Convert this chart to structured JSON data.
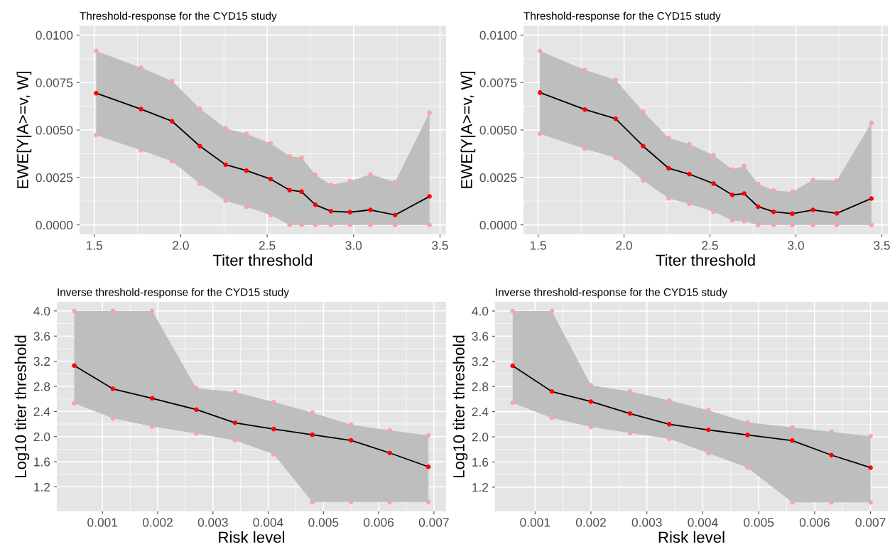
{
  "chart_data": [
    {
      "type": "line",
      "title": "Threshold-response for the CYD15 study",
      "xlabel": "Titer threshold",
      "ylabel": "EWE[Y|A>=v, W]",
      "x": [
        1.511,
        1.77,
        1.95,
        2.111,
        2.26,
        2.38,
        2.52,
        2.63,
        2.699,
        2.779,
        2.869,
        2.979,
        3.098,
        3.24,
        3.439
      ],
      "series": [
        {
          "color": "#000000",
          "marker": "none",
          "values": [
            0.00694,
            0.0061,
            0.00546,
            0.00415,
            0.00317,
            0.00286,
            0.00241,
            0.00183,
            0.00175,
            0.00106,
            0.00072,
            0.00067,
            0.00079,
            0.00052,
            0.0015
          ],
          "upper": [
            0.00916,
            0.00828,
            0.00758,
            0.00612,
            0.00508,
            0.00479,
            0.00429,
            0.00362,
            0.00354,
            0.00264,
            0.00211,
            0.0023,
            0.00266,
            0.00226,
            0.00591
          ],
          "lower": [
            0.00473,
            0.00393,
            0.00335,
            0.00217,
            0.00127,
            0.00095,
            0.00052,
            0,
            0,
            0,
            0,
            0,
            0,
            0,
            0
          ]
        },
        {
          "type": "scatter",
          "color": "#ff0000",
          "marker": "circle",
          "values": [
            0.00694,
            0.0061,
            0.00546,
            0.00415,
            0.00317,
            0.00286,
            0.00241,
            0.00183,
            0.00175,
            0.00106,
            0.00072,
            0.00067,
            0.00079,
            0.00052,
            0.0015
          ]
        },
        {
          "type": "scatter",
          "color": "#f2a7a7",
          "marker": "circle",
          "values": [
            0.00916,
            0.00828,
            0.00758,
            0.00612,
            0.00508,
            0.00479,
            0.00429,
            0.00362,
            0.00354,
            0.00264,
            0.00211,
            0.0023,
            0.00266,
            0.00226,
            0.00591
          ]
        },
        {
          "type": "scatter",
          "color": "#f2a7a7",
          "marker": "circle",
          "values": [
            0.00473,
            0.00393,
            0.00335,
            0.00217,
            0.00127,
            0.00095,
            0.00052,
            0,
            0,
            0,
            0,
            0,
            0,
            0,
            0
          ]
        }
      ],
      "xlim": [
        1.415,
        3.535
      ],
      "ylim": [
        -0.0005,
        0.0105
      ],
      "xticks": [
        {
          "value": 1.5,
          "label": "1.5"
        },
        {
          "value": 2.0,
          "label": "2.0"
        },
        {
          "value": 2.5,
          "label": "2.5"
        },
        {
          "value": 3.0,
          "label": "3.0"
        },
        {
          "value": 3.5,
          "label": "3.5"
        }
      ],
      "yticks": [
        {
          "value": 0,
          "label": "0.0000"
        },
        {
          "value": 0.0025,
          "label": "0.0025"
        },
        {
          "value": 0.005,
          "label": "0.0050"
        },
        {
          "value": 0.0075,
          "label": "0.0075"
        },
        {
          "value": 0.01,
          "label": "0.0100"
        }
      ],
      "grid": true
    },
    {
      "type": "line",
      "title": "Threshold-response for the CYD15 study",
      "xlabel": "Titer threshold",
      "ylabel": "EWE[Y|A>=v, W]",
      "x": [
        1.511,
        1.772,
        1.951,
        2.111,
        2.26,
        2.38,
        2.521,
        2.63,
        2.699,
        2.78,
        2.87,
        2.979,
        3.099,
        3.238,
        3.439
      ],
      "series": [
        {
          "color": "#000000",
          "marker": "none",
          "values": [
            0.00697,
            0.00608,
            0.00559,
            0.00415,
            0.00298,
            0.00267,
            0.00218,
            0.00158,
            0.00165,
            0.00096,
            0.00069,
            0.00059,
            0.00079,
            0.00061,
            0.00139
          ],
          "upper": [
            0.00916,
            0.00816,
            0.00764,
            0.00596,
            0.00458,
            0.00425,
            0.00367,
            0.00291,
            0.00311,
            0.00216,
            0.00182,
            0.00174,
            0.00237,
            0.00233,
            0.00537
          ],
          "lower": [
            0.0048,
            0.00401,
            0.00353,
            0.00235,
            0.0014,
            0.00111,
            0.00069,
            0.00024,
            0.00019,
            0,
            0,
            0,
            0,
            0,
            0
          ]
        },
        {
          "type": "scatter",
          "color": "#ff0000",
          "marker": "circle",
          "values": [
            0.00697,
            0.00608,
            0.00559,
            0.00415,
            0.00298,
            0.00267,
            0.00218,
            0.00158,
            0.00165,
            0.00096,
            0.00069,
            0.00059,
            0.00079,
            0.00061,
            0.00139
          ]
        },
        {
          "type": "scatter",
          "color": "#f2a7a7",
          "marker": "circle",
          "values": [
            0.00916,
            0.00816,
            0.00764,
            0.00596,
            0.00458,
            0.00425,
            0.00367,
            0.00291,
            0.00311,
            0.00216,
            0.00182,
            0.00174,
            0.00237,
            0.00233,
            0.00537
          ]
        },
        {
          "type": "scatter",
          "color": "#f2a7a7",
          "marker": "circle",
          "values": [
            0.0048,
            0.00401,
            0.00353,
            0.00235,
            0.0014,
            0.00111,
            0.00069,
            0.00024,
            0.00019,
            0,
            0,
            0,
            0,
            0,
            0
          ]
        }
      ],
      "xlim": [
        1.415,
        3.535
      ],
      "ylim": [
        -0.0005,
        0.0105
      ],
      "xticks": [
        {
          "value": 1.5,
          "label": "1.5"
        },
        {
          "value": 2.0,
          "label": "2.0"
        },
        {
          "value": 2.5,
          "label": "2.5"
        },
        {
          "value": 3.0,
          "label": "3.0"
        },
        {
          "value": 3.5,
          "label": "3.5"
        }
      ],
      "yticks": [
        {
          "value": 0,
          "label": "0.0000"
        },
        {
          "value": 0.0025,
          "label": "0.0025"
        },
        {
          "value": 0.005,
          "label": "0.0050"
        },
        {
          "value": 0.0075,
          "label": "0.0075"
        },
        {
          "value": 0.01,
          "label": "0.0100"
        }
      ],
      "grid": true
    },
    {
      "type": "line",
      "title": "Inverse threshold-response for the CYD15 study",
      "xlabel": "Risk level",
      "ylabel": "Log10 titer threshold",
      "x": [
        0.00049,
        0.00119,
        0.0019,
        0.0027,
        0.0034,
        0.0041,
        0.0048,
        0.0055,
        0.0062,
        0.0069
      ],
      "series": [
        {
          "color": "#000000",
          "marker": "none",
          "values": [
            3.13,
            2.76,
            2.61,
            2.43,
            2.22,
            2.12,
            2.03,
            1.94,
            1.74,
            1.52
          ],
          "upper": [
            4.0,
            4.0,
            4.0,
            2.77,
            2.71,
            2.55,
            2.38,
            2.19,
            2.1,
            2.02
          ],
          "lower": [
            2.53,
            2.29,
            2.16,
            2.05,
            1.94,
            1.72,
            0.96,
            0.96,
            0.96,
            0.96
          ]
        },
        {
          "type": "scatter",
          "color": "#ff0000",
          "marker": "circle",
          "values": [
            3.13,
            2.76,
            2.61,
            2.43,
            2.22,
            2.12,
            2.03,
            1.94,
            1.74,
            1.52
          ]
        },
        {
          "type": "scatter",
          "color": "#f2a7a7",
          "marker": "circle",
          "values": [
            4.0,
            4.0,
            4.0,
            2.77,
            2.71,
            2.55,
            2.38,
            2.19,
            2.1,
            2.02
          ]
        },
        {
          "type": "scatter",
          "color": "#f2a7a7",
          "marker": "circle",
          "values": [
            2.53,
            2.29,
            2.16,
            2.05,
            1.94,
            1.72,
            0.96,
            0.96,
            0.96,
            0.96
          ]
        }
      ],
      "xlim": [
        0.000174,
        0.00722
      ],
      "ylim": [
        0.81,
        4.145
      ],
      "xticks": [
        0.001,
        0.002,
        0.003,
        0.004,
        0.005,
        0.006,
        0.007
      ],
      "yticks": [
        {
          "value": 1.2,
          "label": "1.2"
        },
        {
          "value": 1.6,
          "label": "1.6"
        },
        {
          "value": 2.0,
          "label": "2.0"
        },
        {
          "value": 2.4,
          "label": "2.4"
        },
        {
          "value": 2.8,
          "label": "2.8"
        },
        {
          "value": 3.2,
          "label": "3.2"
        },
        {
          "value": 3.6,
          "label": "3.6"
        },
        {
          "value": 4.0,
          "label": "4.0"
        }
      ],
      "grid": true
    },
    {
      "type": "line",
      "title": "Inverse threshold-response for the CYD15 study",
      "xlabel": "Risk level",
      "ylabel": "Log10 titer threshold",
      "x": [
        0.0006,
        0.0013,
        0.002,
        0.0027,
        0.0034,
        0.0041,
        0.0048,
        0.0056,
        0.0063,
        0.007
      ],
      "series": [
        {
          "color": "#000000",
          "marker": "none",
          "values": [
            3.13,
            2.72,
            2.56,
            2.37,
            2.2,
            2.11,
            2.03,
            1.94,
            1.71,
            1.51
          ],
          "upper": [
            4.0,
            4.0,
            2.82,
            2.72,
            2.58,
            2.42,
            2.23,
            2.15,
            2.08,
            2.01
          ],
          "lower": [
            2.54,
            2.3,
            2.16,
            2.06,
            1.97,
            1.74,
            1.51,
            0.96,
            0.96,
            0.96
          ]
        },
        {
          "type": "scatter",
          "color": "#ff0000",
          "marker": "circle",
          "values": [
            3.13,
            2.72,
            2.56,
            2.37,
            2.2,
            2.11,
            2.03,
            1.94,
            1.71,
            1.51
          ]
        },
        {
          "type": "scatter",
          "color": "#f2a7a7",
          "marker": "circle",
          "values": [
            4.0,
            4.0,
            2.82,
            2.72,
            2.58,
            2.42,
            2.23,
            2.15,
            2.08,
            2.01
          ]
        },
        {
          "type": "scatter",
          "color": "#f2a7a7",
          "marker": "circle",
          "values": [
            2.54,
            2.3,
            2.16,
            2.06,
            1.97,
            1.74,
            1.51,
            0.96,
            0.96,
            0.96
          ]
        }
      ],
      "xlim": [
        0.000285,
        0.00731
      ],
      "ylim": [
        0.815,
        4.146
      ],
      "xticks": [
        0.001,
        0.002,
        0.003,
        0.004,
        0.005,
        0.006,
        0.007
      ],
      "yticks": [
        {
          "value": 1.2,
          "label": "1.2"
        },
        {
          "value": 1.6,
          "label": "1.6"
        },
        {
          "value": 2.0,
          "label": "2.0"
        },
        {
          "value": 2.4,
          "label": "2.4"
        },
        {
          "value": 2.8,
          "label": "2.8"
        },
        {
          "value": 3.2,
          "label": "3.2"
        },
        {
          "value": 3.6,
          "label": "3.6"
        },
        {
          "value": 4.0,
          "label": "4.0"
        }
      ],
      "grid": true
    }
  ]
}
